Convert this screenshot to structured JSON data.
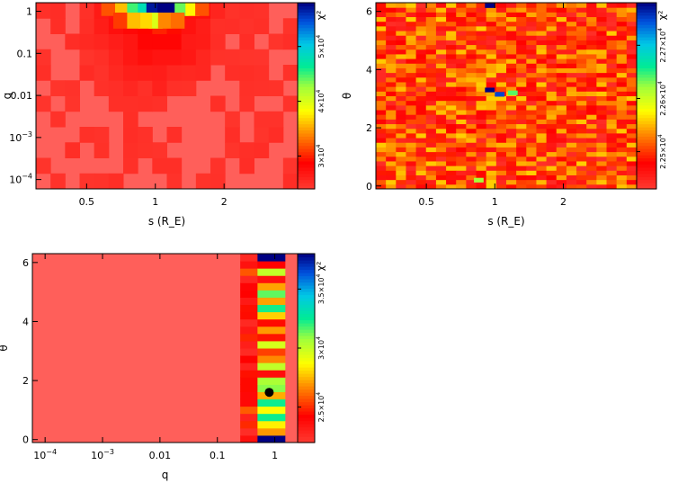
{
  "chart_data": [
    {
      "type": "heatmap",
      "panel": "top-left",
      "xlabel": "s (R_E)",
      "ylabel": "q",
      "x_scale": "log",
      "y_scale": "log",
      "xlim": [
        0.3,
        4.2
      ],
      "ylim": [
        6e-05,
        1.6
      ],
      "x_ticks": [
        {
          "value": 0.5,
          "label": "0.5"
        },
        {
          "value": 1,
          "label": "1"
        },
        {
          "value": 2,
          "label": "2"
        }
      ],
      "y_ticks": [
        {
          "value": 0.0001,
          "base": "10",
          "exp": "−4"
        },
        {
          "value": 0.001,
          "base": "10",
          "exp": "−3"
        },
        {
          "value": 0.01,
          "label": "0.01"
        },
        {
          "value": 0.1,
          "label": "0.1"
        },
        {
          "value": 1,
          "label": "1"
        }
      ],
      "colorbar": {
        "label": "χ²",
        "range": [
          24000,
          58000
        ],
        "ticks": [
          {
            "value": 30000,
            "mant": "3×10",
            "exp": "4"
          },
          {
            "value": 40000,
            "mant": "4×10",
            "exp": "4"
          },
          {
            "value": 50000,
            "mant": "5×10",
            "exp": "4"
          }
        ]
      },
      "grid_note": "chi-square map, minimum ~24000 everywhere except near s≈1 at large q",
      "hot_cells": [
        {
          "s": 1.05,
          "q": 1.2,
          "chi2": 58000
        },
        {
          "s": 1.15,
          "q": 1.2,
          "chi2": 58000
        },
        {
          "s": 0.95,
          "q": 1.2,
          "chi2": 57000
        },
        {
          "s": 0.85,
          "q": 1.2,
          "chi2": 48000
        },
        {
          "s": 0.78,
          "q": 1.2,
          "chi2": 45000
        },
        {
          "s": 1.3,
          "q": 1.2,
          "chi2": 44000
        },
        {
          "s": 1.45,
          "q": 1.2,
          "chi2": 38000
        },
        {
          "s": 0.7,
          "q": 1.2,
          "chi2": 36000
        },
        {
          "s": 1.6,
          "q": 1.2,
          "chi2": 32000
        },
        {
          "s": 0.62,
          "q": 1.2,
          "chi2": 32000
        },
        {
          "s": 1.0,
          "q": 0.6,
          "chi2": 40000
        },
        {
          "s": 0.9,
          "q": 0.6,
          "chi2": 37000
        },
        {
          "s": 1.1,
          "q": 0.6,
          "chi2": 34000
        },
        {
          "s": 0.8,
          "q": 0.6,
          "chi2": 36000
        },
        {
          "s": 1.25,
          "q": 0.6,
          "chi2": 33000
        },
        {
          "s": 0.7,
          "q": 0.6,
          "chi2": 31000
        }
      ]
    },
    {
      "type": "heatmap",
      "panel": "top-right",
      "xlabel": "s (R_E)",
      "ylabel": "θ",
      "x_scale": "log",
      "y_scale": "linear",
      "xlim": [
        0.3,
        4.2
      ],
      "ylim": [
        -0.1,
        6.3
      ],
      "x_ticks": [
        {
          "value": 0.5,
          "label": "0.5"
        },
        {
          "value": 1,
          "label": "1"
        },
        {
          "value": 2,
          "label": "2"
        }
      ],
      "y_ticks": [
        {
          "value": 0,
          "label": "0"
        },
        {
          "value": 2,
          "label": "2"
        },
        {
          "value": 4,
          "label": "4"
        },
        {
          "value": 6,
          "label": "6"
        }
      ],
      "colorbar": {
        "label": "χ²",
        "range": [
          22430,
          22780
        ],
        "ticks": [
          {
            "value": 22500,
            "mant": "2.25×10",
            "exp": "4"
          },
          {
            "value": 22600,
            "mant": "2.26×10",
            "exp": "4"
          },
          {
            "value": 22700,
            "mant": "2.27×10",
            "exp": "4"
          }
        ]
      },
      "grid_note": "noisy chi-square map ~22450–22550 with scattered minima",
      "notable_cells": [
        {
          "s": 0.95,
          "theta": 3.3,
          "chi2": 22780
        },
        {
          "s": 0.95,
          "theta": 6.2,
          "chi2": 22780
        },
        {
          "s": 1.05,
          "theta": 3.15,
          "chi2": 22750
        },
        {
          "s": 1.2,
          "theta": 3.2,
          "chi2": 22640
        },
        {
          "s": 0.85,
          "theta": 0.2,
          "chi2": 22620
        }
      ]
    },
    {
      "type": "heatmap",
      "panel": "bottom-left",
      "xlabel": "q",
      "ylabel": "θ",
      "x_scale": "log",
      "y_scale": "linear",
      "xlim": [
        6e-05,
        2.5
      ],
      "ylim": [
        -0.1,
        6.3
      ],
      "x_ticks": [
        {
          "value": 0.0001,
          "base": "10",
          "exp": "−4"
        },
        {
          "value": 0.001,
          "base": "10",
          "exp": "−3"
        },
        {
          "value": 0.01,
          "label": "0.01"
        },
        {
          "value": 0.1,
          "label": "0.1"
        },
        {
          "value": 1,
          "label": "1"
        }
      ],
      "y_ticks": [
        {
          "value": 0,
          "label": "0"
        },
        {
          "value": 2,
          "label": "2"
        },
        {
          "value": 4,
          "label": "4"
        },
        {
          "value": 6,
          "label": "6"
        }
      ],
      "colorbar": {
        "label": "χ²",
        "range": [
          22000,
          38000
        ],
        "ticks": [
          {
            "value": 25000,
            "mant": "2.5×10",
            "exp": "4"
          },
          {
            "value": 30000,
            "mant": "3×10",
            "exp": "4"
          },
          {
            "value": 35000,
            "mant": "3.5×10",
            "exp": "4"
          }
        ]
      },
      "best_fit_marker": {
        "q": 0.8,
        "theta": 1.6
      },
      "grid_note": "flat chi-square ~22500 for q<0.25; structure for q≈0.3–1.5"
    }
  ]
}
